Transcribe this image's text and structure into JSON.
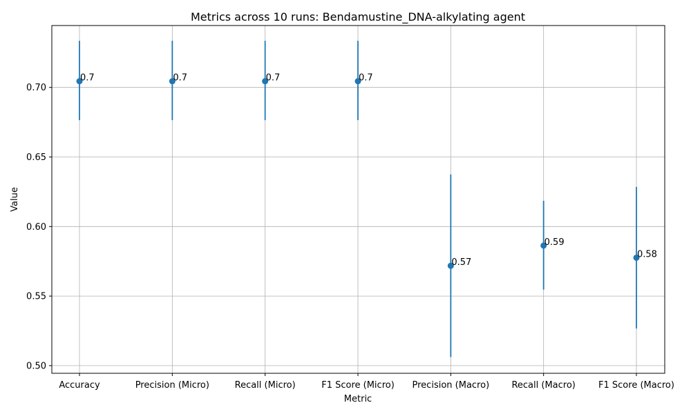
{
  "chart_data": {
    "type": "scatter",
    "title": "Metrics across 10 runs: Bendamustine_DNA-alkylating agent",
    "xlabel": "Metric",
    "ylabel": "Value",
    "categories": [
      "Accuracy",
      "Precision (Micro)",
      "Recall (Micro)",
      "F1 Score (Micro)",
      "Precision (Macro)",
      "Recall (Macro)",
      "F1 Score (Macro)"
    ],
    "values": [
      0.7045,
      0.7045,
      0.7045,
      0.7045,
      0.5718,
      0.5863,
      0.5776
    ],
    "error_low": [
      0.6765,
      0.6765,
      0.6765,
      0.6765,
      0.5062,
      0.5547,
      0.5267
    ],
    "error_high": [
      0.7335,
      0.7335,
      0.7335,
      0.7335,
      0.6375,
      0.6185,
      0.6285
    ],
    "data_labels": [
      "0.7",
      "0.7",
      "0.7",
      "0.7",
      "0.57",
      "0.59",
      "0.58"
    ],
    "ylim": [
      0.4945,
      0.7445
    ],
    "yticks": [
      0.5,
      0.55,
      0.6,
      0.65,
      0.7
    ],
    "ytick_labels": [
      "0.50",
      "0.55",
      "0.60",
      "0.65",
      "0.70"
    ],
    "grid": true,
    "legend": "none",
    "color": "#1f77b4"
  }
}
